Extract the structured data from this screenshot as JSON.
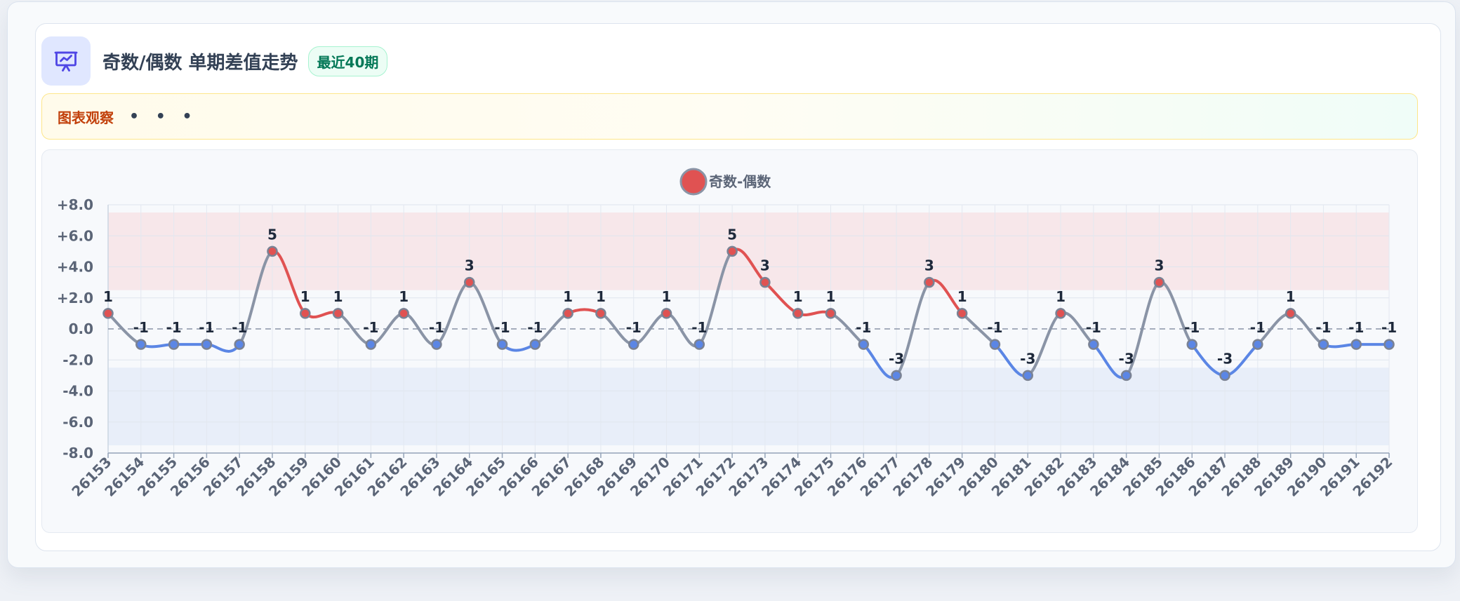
{
  "header": {
    "title": "奇数/偶数 单期差值走势",
    "badge": "最近40期",
    "icon": "presentation-chart-icon"
  },
  "observation": {
    "label": "图表观察",
    "dots": "• • •"
  },
  "colors": {
    "positive": "#e05252",
    "negative": "#5b86e5",
    "neutral": "#8a94a6",
    "upper_band": "#f7e7ea",
    "lower_band": "#e8eef9"
  },
  "chart_data": {
    "type": "line",
    "title": "",
    "xlabel": "",
    "ylabel": "",
    "legend": {
      "position": "top-center",
      "entries": [
        "奇数-偶数"
      ]
    },
    "grid": true,
    "ylim": [
      -8,
      8
    ],
    "yticks": [
      "-8.0",
      "-6.0",
      "-4.0",
      "-2.0",
      "0.0",
      "+2.0",
      "+4.0",
      "+6.0",
      "+8.0"
    ],
    "bands": [
      {
        "from": 2.5,
        "to": 7.5,
        "color": "#f7e7ea"
      },
      {
        "from": -7.5,
        "to": -2.5,
        "color": "#e8eef9"
      }
    ],
    "zero_line": true,
    "categories": [
      "26153",
      "26154",
      "26155",
      "26156",
      "26157",
      "26158",
      "26159",
      "26160",
      "26161",
      "26162",
      "26163",
      "26164",
      "26165",
      "26166",
      "26167",
      "26168",
      "26169",
      "26170",
      "26171",
      "26172",
      "26173",
      "26174",
      "26175",
      "26176",
      "26177",
      "26178",
      "26179",
      "26180",
      "26181",
      "26182",
      "26183",
      "26184",
      "26185",
      "26186",
      "26187",
      "26188",
      "26189",
      "26190",
      "26191",
      "26192"
    ],
    "series": [
      {
        "name": "奇数-偶数",
        "values": [
          1,
          -1,
          -1,
          -1,
          -1,
          5,
          1,
          1,
          -1,
          1,
          -1,
          3,
          -1,
          -1,
          1,
          1,
          -1,
          1,
          -1,
          5,
          3,
          1,
          1,
          -1,
          -3,
          3,
          1,
          -1,
          -3,
          1,
          -1,
          -3,
          3,
          -1,
          -3,
          -1,
          1,
          -1,
          -1,
          -1
        ],
        "labels": [
          "1",
          "-1",
          "-1",
          "-1",
          "-1",
          "5",
          "1",
          "1",
          "-1",
          "1",
          "-1",
          "3",
          "-1",
          "-1",
          "1",
          "1",
          "-1",
          "1",
          "-1",
          "5",
          "3",
          "1",
          "1",
          "-1",
          "-3",
          "3",
          "1",
          "-1",
          "-3",
          "1",
          "-1",
          "-3",
          "3",
          "-1",
          "-3",
          "-1",
          "1",
          "-1",
          "-1",
          "-1"
        ]
      }
    ]
  }
}
